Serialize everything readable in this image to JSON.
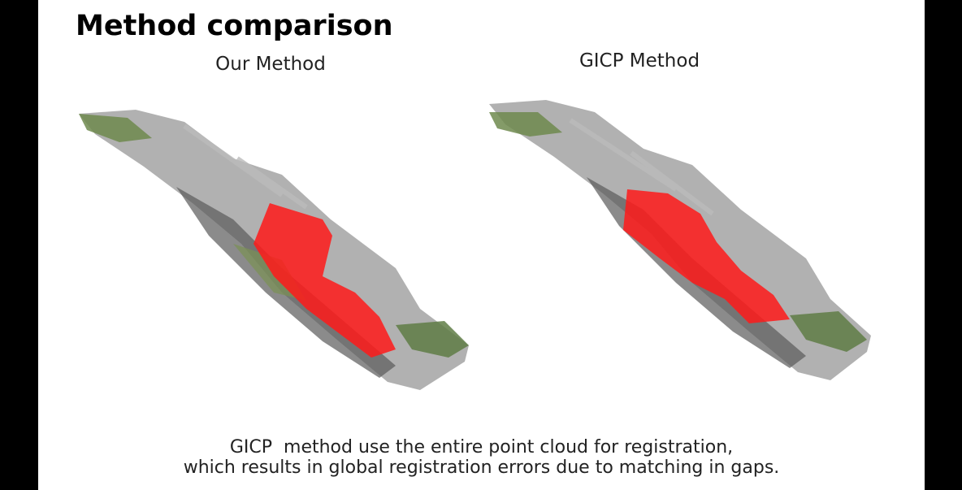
{
  "header": {
    "title": "Method comparison"
  },
  "panels": [
    {
      "label": "Our Method"
    },
    {
      "label": "GICP Method"
    }
  ],
  "caption": {
    "lines": [
      "GICP  method use the entire point cloud for registration,",
      "which results in global registration errors due to matching in gaps."
    ]
  }
}
